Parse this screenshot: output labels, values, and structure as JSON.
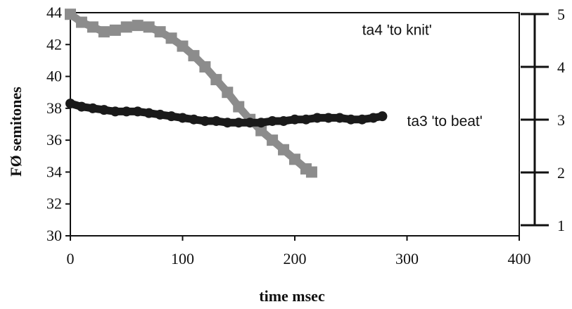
{
  "chart_data": {
    "type": "line",
    "xlabel": "time msec",
    "ylabel": "FØ semitones",
    "xlim": [
      0,
      400
    ],
    "ylim": [
      30,
      44
    ],
    "x_ticks": [
      0,
      100,
      200,
      300,
      400
    ],
    "y_ticks": [
      30,
      32,
      34,
      36,
      38,
      40,
      42,
      44
    ],
    "secondary_axis": {
      "side": "right",
      "range": [
        1,
        5
      ],
      "ticks": [
        1,
        2,
        3,
        4,
        5
      ]
    },
    "grid": false,
    "series": [
      {
        "name": "ta4 'to knit'",
        "color": "#8c8c8c",
        "marker": "square",
        "x": [
          0,
          10,
          20,
          30,
          40,
          50,
          60,
          70,
          80,
          90,
          100,
          110,
          120,
          130,
          140,
          150,
          160,
          170,
          180,
          190,
          200,
          210,
          215
        ],
        "y": [
          43.9,
          43.4,
          43.1,
          42.8,
          42.9,
          43.1,
          43.2,
          43.1,
          42.8,
          42.4,
          41.9,
          41.3,
          40.6,
          39.8,
          39.0,
          38.1,
          37.3,
          36.6,
          36.0,
          35.4,
          34.8,
          34.2,
          34.0
        ]
      },
      {
        "name": "ta3 'to beat'",
        "color": "#1a1a1a",
        "marker": "circle",
        "x": [
          0,
          10,
          20,
          30,
          40,
          50,
          60,
          70,
          80,
          90,
          100,
          110,
          120,
          130,
          140,
          150,
          160,
          170,
          180,
          190,
          200,
          210,
          220,
          230,
          240,
          250,
          260,
          270,
          278
        ],
        "y": [
          38.3,
          38.1,
          38.0,
          37.9,
          37.8,
          37.8,
          37.8,
          37.7,
          37.6,
          37.5,
          37.4,
          37.3,
          37.2,
          37.2,
          37.1,
          37.1,
          37.1,
          37.1,
          37.2,
          37.2,
          37.3,
          37.3,
          37.4,
          37.4,
          37.4,
          37.3,
          37.3,
          37.4,
          37.5
        ]
      }
    ],
    "annotations": [
      {
        "text": "ta4 'to knit'",
        "x": 260,
        "y": 42.6
      },
      {
        "text": "ta3 'to beat'",
        "x": 300,
        "y": 36.9
      }
    ]
  }
}
